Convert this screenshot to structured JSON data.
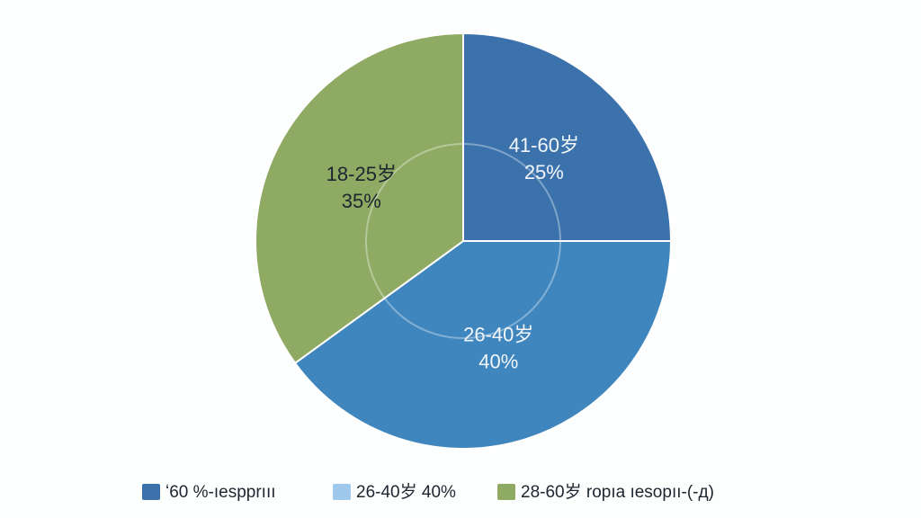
{
  "chart_data": {
    "type": "pie",
    "categories": [
      "41-60岁",
      "26-40岁",
      "18-25岁"
    ],
    "values": [
      25,
      40,
      35
    ],
    "value_labels": [
      "25%",
      "40%",
      "35%"
    ],
    "colors": [
      "#3b72ab",
      "#3f86be",
      "#8fab63"
    ],
    "label_colors": [
      "#f2f6fb",
      "#f2f6fb",
      "#1d2530"
    ],
    "legend": [
      {
        "label": "ʻ60 %-ıespprııı",
        "color": "#3b72ab"
      },
      {
        "label": "26-40岁 40%",
        "color": "#9ec9ec"
      },
      {
        "label": "28-60岁 ropıa ıesopıı-(-д)",
        "color": "#8fab63"
      }
    ]
  }
}
